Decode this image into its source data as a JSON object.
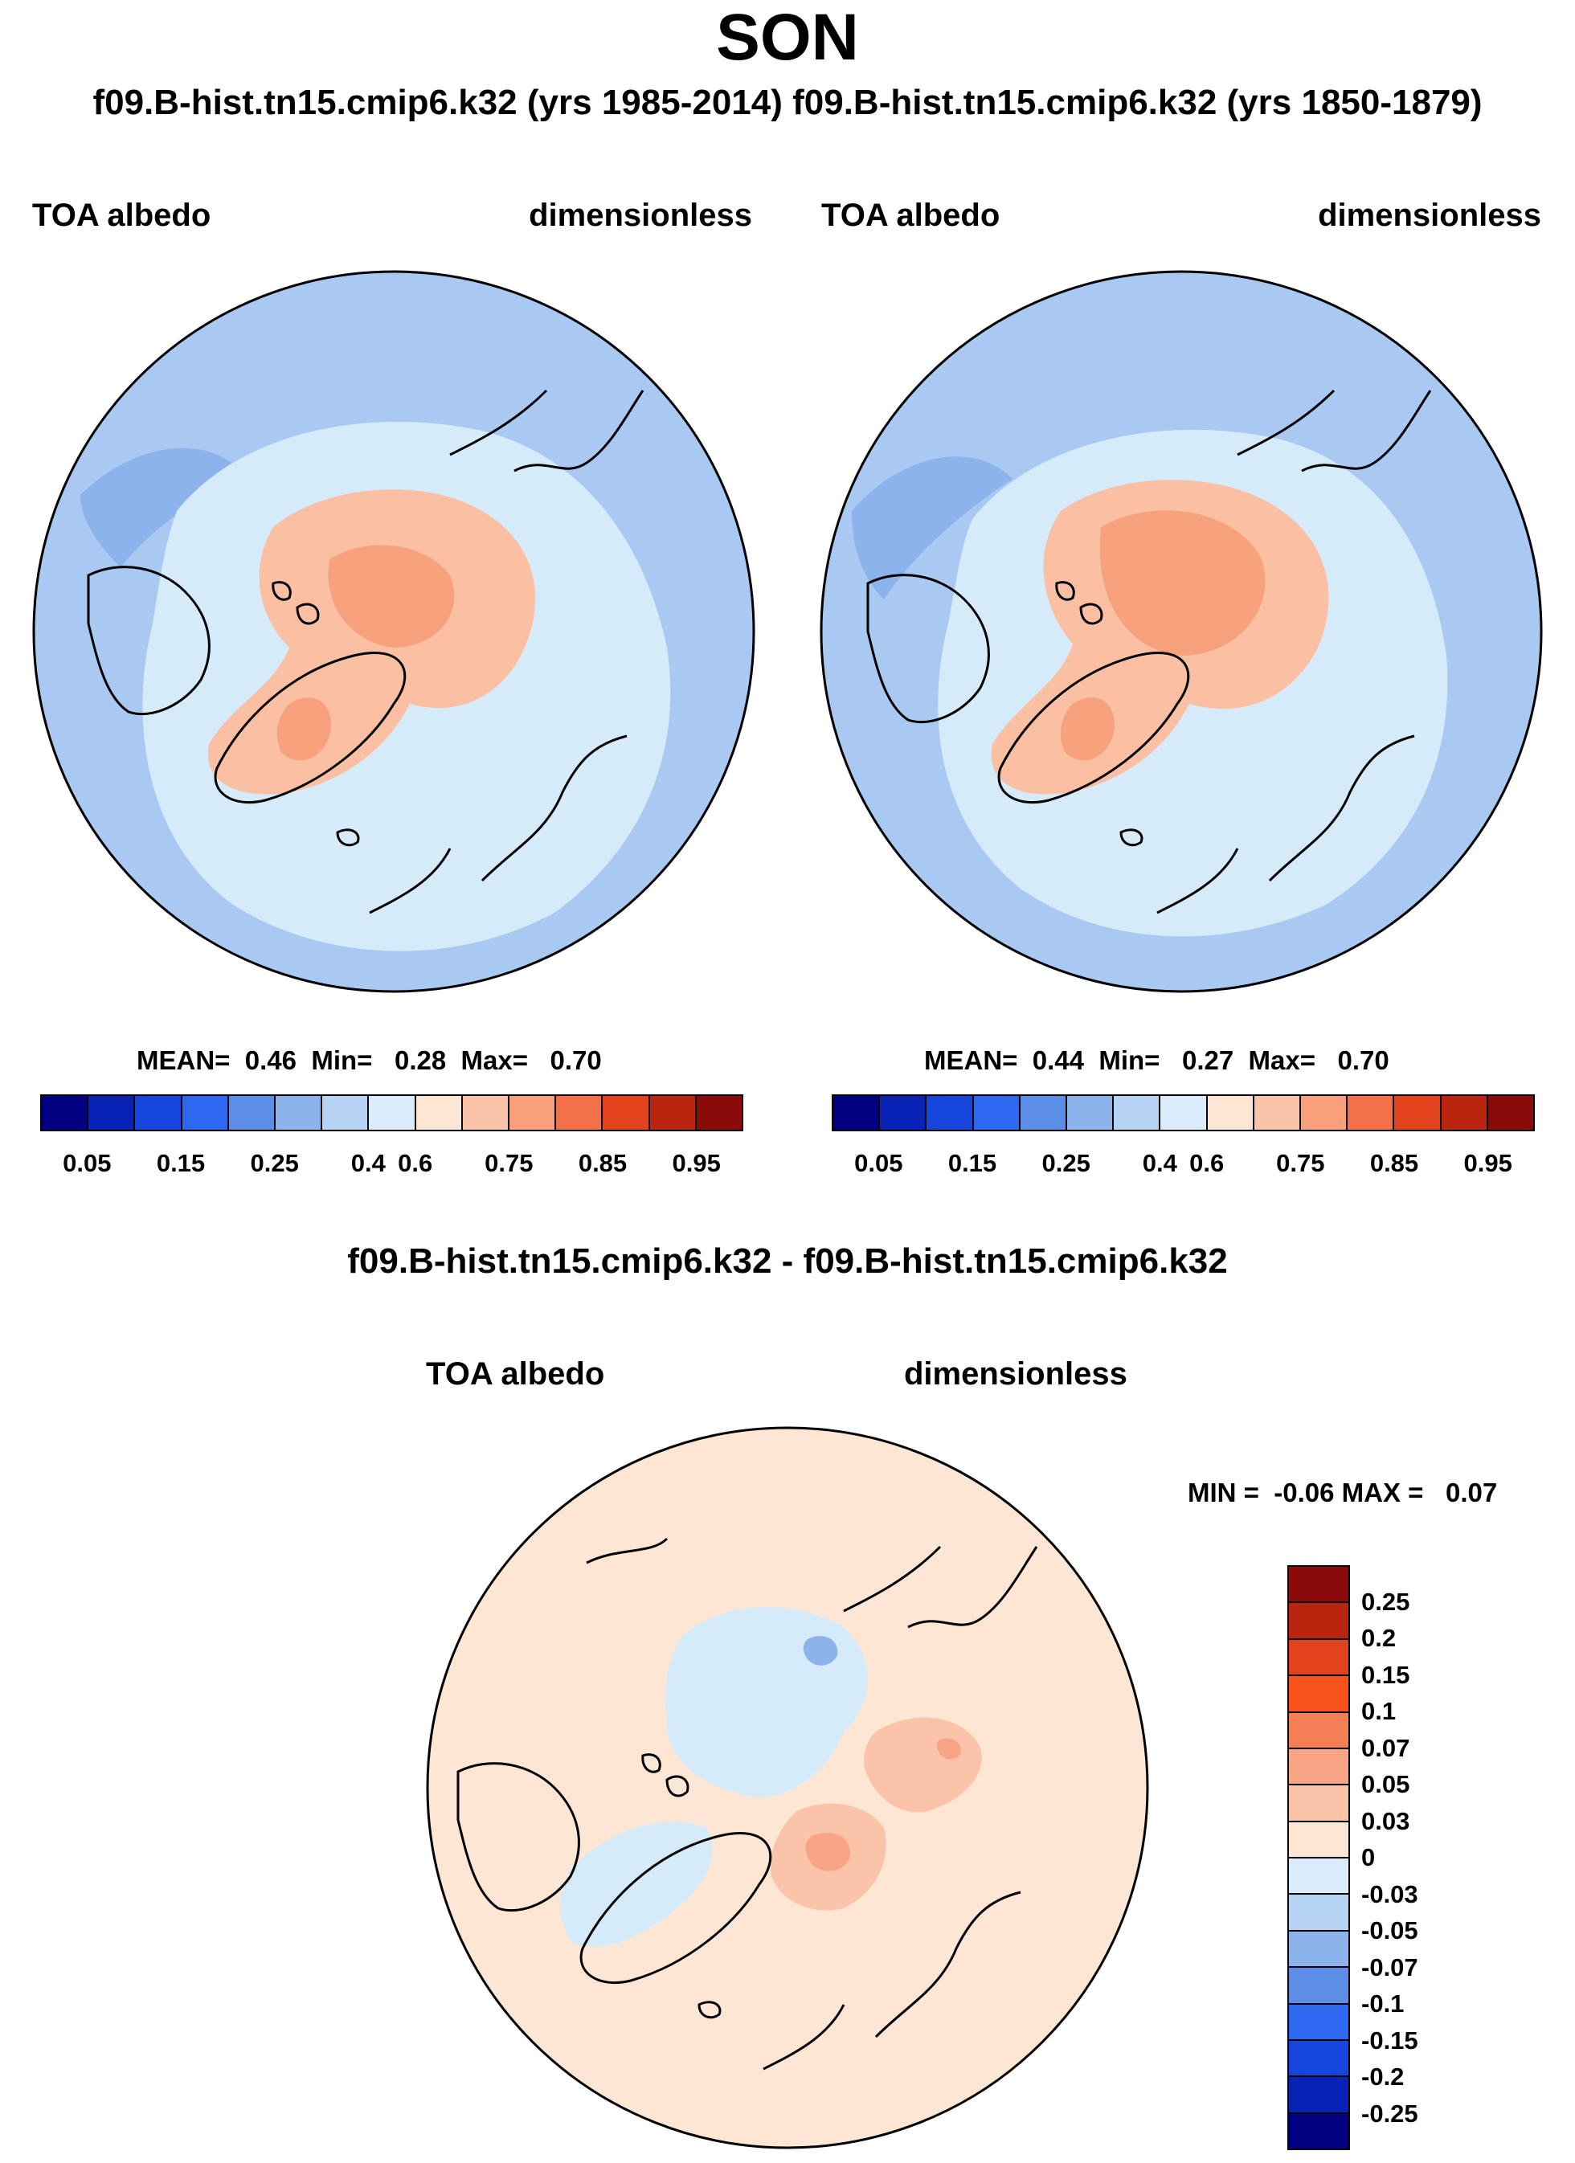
{
  "title": "SON",
  "subtitle": "f09.B-hist.tn15.cmip6.k32 (yrs 1985-2014) f09.B-hist.tn15.cmip6.k32 (yrs 1850-1879)",
  "colors": {
    "ocean": "#d6ebfa",
    "ice_sheet": "#fbc0a3",
    "ice_core": "#f7a17d",
    "pos_light": "#fde6d3",
    "neg_light": "#d6ebfa",
    "low": "#a9c8f2",
    "mid_blue": "#8db3ec"
  },
  "chart_data": [
    {
      "type": "heatmap",
      "panel": "top-left",
      "title": "TOA albedo",
      "units": "dimensionless",
      "stats": {
        "mean_label": "MEAN=",
        "mean": "0.46",
        "min_label": "Min=",
        "min": "0.28",
        "max_label": "Max=",
        "max": "0.70"
      },
      "colorbar": {
        "orientation": "horizontal",
        "tick_labels": [
          "0.05",
          "0.15",
          "0.25",
          "0.4",
          "0.6",
          "0.75",
          "0.85",
          "0.95"
        ],
        "colors": [
          "#000080",
          "#0822b5",
          "#1545db",
          "#2c68f0",
          "#5c8ee8",
          "#8db3ec",
          "#b7d3f4",
          "#daecfb",
          "#fde6d3",
          "#fbc4a9",
          "#f99f7b",
          "#f47048",
          "#e2431c",
          "#bb2510",
          "#8b0a0a"
        ]
      }
    },
    {
      "type": "heatmap",
      "panel": "top-right",
      "title": "TOA albedo",
      "units": "dimensionless",
      "stats": {
        "mean_label": "MEAN=",
        "mean": "0.44",
        "min_label": "Min=",
        "min": "0.27",
        "max_label": "Max=",
        "max": "0.70"
      },
      "colorbar": {
        "orientation": "horizontal",
        "tick_labels": [
          "0.05",
          "0.15",
          "0.25",
          "0.4",
          "0.6",
          "0.75",
          "0.85",
          "0.95"
        ],
        "colors": [
          "#000080",
          "#0822b5",
          "#1545db",
          "#2c68f0",
          "#5c8ee8",
          "#8db3ec",
          "#b7d3f4",
          "#daecfb",
          "#fde6d3",
          "#fbc4a9",
          "#f99f7b",
          "#f47048",
          "#e2431c",
          "#bb2510",
          "#8b0a0a"
        ]
      }
    },
    {
      "type": "heatmap",
      "panel": "bottom",
      "heading": "f09.B-hist.tn15.cmip6.k32 - f09.B-hist.tn15.cmip6.k32",
      "title": "TOA albedo",
      "units": "dimensionless",
      "stats": {
        "min_label": "MIN =",
        "min": "-0.06",
        "max_label": "MAX =",
        "max": "0.07"
      },
      "colorbar": {
        "orientation": "vertical",
        "tick_labels": [
          "0.25",
          "0.2",
          "0.15",
          "0.1",
          "0.07",
          "0.05",
          "0.03",
          "0",
          "-0.03",
          "-0.05",
          "-0.07",
          "-0.1",
          "-0.15",
          "-0.2",
          "-0.25"
        ],
        "colors": [
          "#8b0a0a",
          "#bb2510",
          "#e2431c",
          "#f9531d",
          "#f47f55",
          "#f9a585",
          "#fbc4a9",
          "#fde6d3",
          "#daecfb",
          "#b7d3f4",
          "#8db3ec",
          "#5c8ee8",
          "#2c68f0",
          "#1545db",
          "#0822b5",
          "#000080"
        ]
      }
    }
  ]
}
